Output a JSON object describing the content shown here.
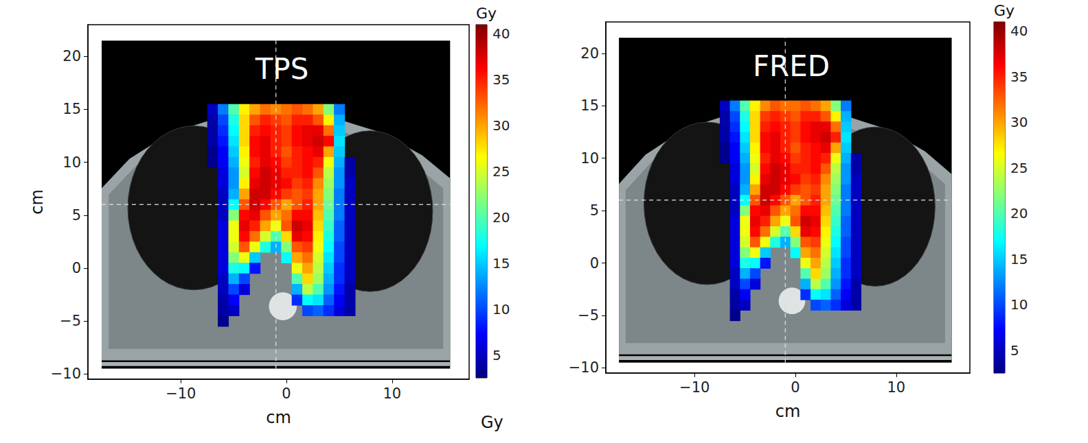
{
  "chart_data": [
    {
      "type": "heatmap",
      "title": "TPS",
      "xlabel": "cm",
      "ylabel": "cm",
      "xlim": [
        -18.8,
        17.3
      ],
      "ylim": [
        -10.5,
        23
      ],
      "xticks": [
        {
          "value": -10,
          "label": "−10"
        },
        0,
        10
      ],
      "yticks": [
        {
          "value": -10,
          "label": "−10"
        },
        {
          "value": -5,
          "label": "−5"
        },
        0,
        5,
        10,
        15,
        20
      ],
      "crosshair": {
        "x": -1,
        "y": 6
      },
      "ct_extent": {
        "x": [
          -17.5,
          15.5
        ],
        "y": [
          -9.5,
          21.5
        ]
      },
      "dose": {
        "x": [
          -7,
          -6,
          -5,
          -4,
          -3,
          -2,
          -1,
          0,
          1,
          2,
          3,
          4,
          5,
          6,
          7
        ],
        "y": [
          15,
          14,
          13,
          12,
          11,
          10,
          9,
          8,
          7,
          6,
          5,
          4,
          3,
          2,
          1,
          0,
          -1,
          -2,
          -3,
          -4,
          -5
        ],
        "values": [
          [
            5,
            12,
            20,
            27,
            30,
            32,
            31,
            32,
            33,
            32,
            30,
            22,
            12,
            null,
            null
          ],
          [
            4,
            10,
            18,
            28,
            33,
            35,
            34,
            33,
            35,
            35,
            33,
            27,
            14,
            null,
            null
          ],
          [
            4,
            9,
            17,
            28,
            35,
            36,
            35,
            34,
            36,
            37,
            37,
            32,
            15,
            null,
            null
          ],
          [
            4,
            8,
            16,
            28,
            36,
            37,
            35,
            34,
            36,
            37,
            38,
            36,
            16,
            null,
            null
          ],
          [
            3,
            7,
            15,
            27,
            36,
            37,
            35,
            33,
            35,
            36,
            37,
            30,
            15,
            null,
            null
          ],
          [
            3,
            7,
            14,
            26,
            35,
            37,
            36,
            34,
            35,
            36,
            35,
            26,
            14,
            4,
            null
          ],
          [
            null,
            6,
            13,
            25,
            36,
            38,
            37,
            35,
            35,
            36,
            33,
            24,
            13,
            4,
            null
          ],
          [
            null,
            6,
            13,
            27,
            37,
            38,
            37,
            36,
            34,
            35,
            31,
            23,
            13,
            5,
            null
          ],
          [
            null,
            5,
            14,
            30,
            38,
            38,
            36,
            34,
            33,
            34,
            30,
            22,
            12,
            5,
            null
          ],
          [
            null,
            5,
            17,
            33,
            38,
            36,
            33,
            30,
            33,
            35,
            30,
            21,
            12,
            5,
            null
          ],
          [
            null,
            5,
            22,
            36,
            37,
            33,
            30,
            32,
            36,
            36,
            29,
            20,
            12,
            5,
            null
          ],
          [
            null,
            6,
            26,
            37,
            35,
            30,
            26,
            33,
            38,
            37,
            28,
            19,
            11,
            5,
            null
          ],
          [
            null,
            6,
            26,
            36,
            32,
            25,
            20,
            28,
            37,
            36,
            27,
            18,
            11,
            5,
            null
          ],
          [
            null,
            6,
            25,
            33,
            26,
            18,
            14,
            22,
            33,
            34,
            26,
            17,
            10,
            5,
            null
          ],
          [
            null,
            6,
            22,
            26,
            15,
            null,
            null,
            17,
            30,
            32,
            25,
            16,
            10,
            5,
            null
          ],
          [
            null,
            6,
            18,
            17,
            8,
            null,
            null,
            null,
            26,
            30,
            24,
            15,
            9,
            5,
            null
          ],
          [
            null,
            5,
            14,
            10,
            null,
            null,
            null,
            null,
            20,
            28,
            23,
            14,
            9,
            5,
            null
          ],
          [
            null,
            5,
            10,
            6,
            null,
            null,
            null,
            null,
            14,
            24,
            20,
            13,
            8,
            4,
            null
          ],
          [
            null,
            4,
            7,
            null,
            null,
            null,
            null,
            null,
            9,
            17,
            16,
            11,
            7,
            4,
            null
          ],
          [
            null,
            4,
            5,
            null,
            null,
            null,
            null,
            null,
            null,
            10,
            11,
            9,
            6,
            4,
            null
          ],
          [
            null,
            3,
            null,
            null,
            null,
            null,
            null,
            null,
            null,
            null,
            null,
            null,
            null,
            null,
            null
          ]
        ]
      },
      "colorbar": {
        "label": "Gy",
        "range": [
          2.5,
          41
        ],
        "ticks": [
          5,
          10,
          15,
          20,
          25,
          30,
          35,
          40
        ]
      },
      "annotations": [
        "Gy"
      ]
    },
    {
      "type": "heatmap",
      "title": "FRED",
      "xlabel": "cm",
      "xlim": [
        -18.8,
        17.3
      ],
      "ylim": [
        -10.5,
        23
      ],
      "xticks": [
        {
          "value": -10,
          "label": "−10"
        },
        0,
        10
      ],
      "yticks": [
        {
          "value": -10,
          "label": "−10"
        },
        {
          "value": -5,
          "label": "−5"
        },
        0,
        5,
        10,
        15,
        20
      ],
      "crosshair": {
        "x": -1,
        "y": 6
      },
      "ct_extent": {
        "x": [
          -17.5,
          15.5
        ],
        "y": [
          -9.5,
          21.5
        ]
      },
      "dose": {
        "x": [
          -7,
          -6,
          -5,
          -4,
          -3,
          -2,
          -1,
          0,
          1,
          2,
          3,
          4,
          5,
          6,
          7
        ],
        "y": [
          15,
          14,
          13,
          12,
          11,
          10,
          9,
          8,
          7,
          6,
          5,
          4,
          3,
          2,
          1,
          0,
          -1,
          -2,
          -3,
          -4,
          -5
        ],
        "values": [
          [
            5,
            12,
            20,
            27,
            31,
            33,
            32,
            32,
            33,
            32,
            30,
            22,
            12,
            null,
            null
          ],
          [
            4,
            10,
            18,
            28,
            34,
            35,
            34,
            33,
            35,
            35,
            33,
            27,
            14,
            null,
            null
          ],
          [
            4,
            9,
            17,
            28,
            35,
            36,
            35,
            34,
            36,
            37,
            37,
            32,
            15,
            null,
            null
          ],
          [
            4,
            8,
            16,
            28,
            36,
            37,
            35,
            34,
            36,
            37,
            38,
            35,
            16,
            null,
            null
          ],
          [
            3,
            7,
            15,
            27,
            36,
            37,
            35,
            33,
            35,
            36,
            37,
            30,
            15,
            null,
            null
          ],
          [
            3,
            7,
            14,
            26,
            35,
            37,
            36,
            34,
            35,
            36,
            35,
            26,
            14,
            4,
            null
          ],
          [
            null,
            6,
            13,
            25,
            36,
            38,
            37,
            35,
            35,
            36,
            33,
            24,
            13,
            4,
            null
          ],
          [
            null,
            6,
            13,
            27,
            37,
            38,
            37,
            36,
            34,
            35,
            31,
            23,
            13,
            5,
            null
          ],
          [
            null,
            5,
            14,
            30,
            38,
            38,
            36,
            34,
            33,
            34,
            30,
            22,
            12,
            5,
            null
          ],
          [
            null,
            5,
            17,
            33,
            38,
            36,
            33,
            30,
            33,
            35,
            30,
            21,
            12,
            5,
            null
          ],
          [
            null,
            5,
            22,
            36,
            37,
            33,
            30,
            32,
            36,
            36,
            29,
            20,
            12,
            5,
            null
          ],
          [
            null,
            6,
            26,
            37,
            35,
            30,
            26,
            33,
            38,
            37,
            28,
            19,
            11,
            5,
            null
          ],
          [
            null,
            6,
            26,
            36,
            32,
            25,
            20,
            28,
            37,
            36,
            27,
            18,
            11,
            5,
            null
          ],
          [
            null,
            6,
            25,
            33,
            26,
            18,
            14,
            22,
            33,
            34,
            26,
            17,
            10,
            5,
            null
          ],
          [
            null,
            6,
            22,
            26,
            15,
            null,
            null,
            17,
            30,
            32,
            25,
            16,
            10,
            5,
            null
          ],
          [
            null,
            6,
            18,
            17,
            8,
            null,
            null,
            null,
            26,
            30,
            24,
            15,
            9,
            5,
            null
          ],
          [
            null,
            5,
            14,
            10,
            null,
            null,
            null,
            null,
            20,
            28,
            23,
            14,
            9,
            5,
            null
          ],
          [
            null,
            5,
            10,
            6,
            null,
            null,
            null,
            null,
            14,
            24,
            20,
            13,
            8,
            4,
            null
          ],
          [
            null,
            4,
            7,
            null,
            null,
            null,
            null,
            null,
            9,
            17,
            16,
            11,
            7,
            4,
            null
          ],
          [
            null,
            4,
            5,
            null,
            null,
            null,
            null,
            null,
            null,
            10,
            11,
            9,
            6,
            4,
            null
          ],
          [
            null,
            3,
            null,
            null,
            null,
            null,
            null,
            null,
            null,
            null,
            null,
            null,
            null,
            null,
            null
          ]
        ]
      },
      "colorbar": {
        "label": "Gy",
        "range": [
          2.5,
          41
        ],
        "ticks": [
          5,
          10,
          15,
          20,
          25,
          30,
          35,
          40
        ]
      }
    }
  ]
}
